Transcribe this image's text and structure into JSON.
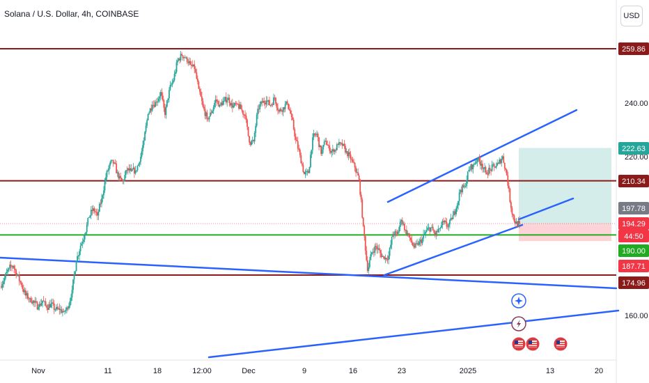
{
  "header": {
    "title": "Solana / U.S. Dollar, 4h, COINBASE",
    "currency_button": "USD"
  },
  "chart_data": {
    "type": "candlestick",
    "title": "Solana / U.S. Dollar, 4h, COINBASE",
    "y_axis_ticks": [
      "240.00",
      "220.00",
      "160.00"
    ],
    "x_axis_ticks": [
      "Nov",
      "11",
      "18",
      "12:00",
      "Dec",
      "9",
      "16",
      "23",
      "2025",
      "13",
      "20"
    ],
    "price_levels": [
      {
        "label": "259.86",
        "value": 259.86,
        "color": "#8b1a1a"
      },
      {
        "label": "222.63",
        "value": 222.63,
        "color": "#26a69a"
      },
      {
        "label": "210.34",
        "value": 210.34,
        "color": "#8b1a1a"
      },
      {
        "label": "197.78",
        "value": 197.78,
        "color": "#787b86"
      },
      {
        "label": "194.29",
        "value": 194.29,
        "color": "#f23645"
      },
      {
        "label": "44:50",
        "value": 191.9,
        "color": "#f23645"
      },
      {
        "label": "190.00",
        "value": 190.0,
        "color": "#22ab22"
      },
      {
        "label": "187.71",
        "value": 187.71,
        "color": "#f23645"
      },
      {
        "label": "174.96",
        "value": 174.96,
        "color": "#8b1a1a"
      }
    ],
    "horizontal_lines": [
      {
        "price": 259.86,
        "color": "#8b1a1a"
      },
      {
        "price": 210.34,
        "color": "#8b1a1a"
      },
      {
        "price": 190.0,
        "color": "#22ab22"
      },
      {
        "price": 174.96,
        "color": "#8b1a1a"
      }
    ],
    "position_box": {
      "entry": 194.29,
      "target": 222.63,
      "stop": 187.71
    },
    "ylim": [
      147,
      273
    ],
    "price_series": [
      [
        170.8,
        173.8
      ],
      [
        173.8,
        177.5
      ],
      [
        177.5,
        178.4
      ],
      [
        178.4,
        175.0
      ],
      [
        175.0,
        171.2
      ],
      [
        171.2,
        167.3
      ],
      [
        167.3,
        166.3
      ],
      [
        166.3,
        164.6
      ],
      [
        164.6,
        162.9
      ],
      [
        162.9,
        165.4
      ],
      [
        165.4,
        162.7
      ],
      [
        162.7,
        164.2
      ],
      [
        164.2,
        162.0
      ],
      [
        162.0,
        161.9
      ],
      [
        161.9,
        161.3
      ],
      [
        161.3,
        162.4
      ],
      [
        162.4,
        169.4
      ],
      [
        169.4,
        180.3
      ],
      [
        180.3,
        186.0
      ],
      [
        186.0,
        190.3
      ],
      [
        190.3,
        196.7
      ],
      [
        196.7,
        200.0
      ],
      [
        200.0,
        197.3
      ],
      [
        197.3,
        203.7
      ],
      [
        203.7,
        211.7
      ],
      [
        211.7,
        217.1
      ],
      [
        217.1,
        217.1
      ],
      [
        217.1,
        211.2
      ],
      [
        211.2,
        210.1
      ],
      [
        210.1,
        214.3
      ],
      [
        214.3,
        214.0
      ],
      [
        214.0,
        214.2
      ],
      [
        214.2,
        217.4
      ],
      [
        217.4,
        225.4
      ],
      [
        225.4,
        235.4
      ],
      [
        235.4,
        238.8
      ],
      [
        238.8,
        239.8
      ],
      [
        239.8,
        243.6
      ],
      [
        243.6,
        235.0
      ],
      [
        235.0,
        244.4
      ],
      [
        244.4,
        248.0
      ],
      [
        248.0,
        255.5
      ],
      [
        255.5,
        257.4
      ],
      [
        257.4,
        256.6
      ],
      [
        256.6,
        253.9
      ],
      [
        253.9,
        252.3
      ],
      [
        252.3,
        244.8
      ],
      [
        244.8,
        238.1
      ],
      [
        238.1,
        233.6
      ],
      [
        233.6,
        235.7
      ],
      [
        235.7,
        240.8
      ],
      [
        240.8,
        238.8
      ],
      [
        238.8,
        240.3
      ],
      [
        240.3,
        241.5
      ],
      [
        241.5,
        237.8
      ],
      [
        237.8,
        239.2
      ],
      [
        239.2,
        237.2
      ],
      [
        237.2,
        234.7
      ],
      [
        234.7,
        224.7
      ],
      [
        224.7,
        225.1
      ],
      [
        225.1,
        237.3
      ],
      [
        237.3,
        239.6
      ],
      [
        239.6,
        240.4
      ],
      [
        240.4,
        238.6
      ],
      [
        238.6,
        241.5
      ],
      [
        241.5,
        236.3
      ],
      [
        236.3,
        237.9
      ],
      [
        237.9,
        239.3
      ],
      [
        239.3,
        234.2
      ],
      [
        234.2,
        225.7
      ],
      [
        225.7,
        219.9
      ],
      [
        219.9,
        212.8
      ],
      [
        212.8,
        213.2
      ],
      [
        213.2,
        226.6
      ],
      [
        226.6,
        228.0
      ],
      [
        228.0,
        220.4
      ],
      [
        220.4,
        225.3
      ],
      [
        225.3,
        221.6
      ],
      [
        221.6,
        221.2
      ],
      [
        221.2,
        223.8
      ],
      [
        223.8,
        223.5
      ],
      [
        223.5,
        221.4
      ],
      [
        221.4,
        218.4
      ],
      [
        218.4,
        215.3
      ],
      [
        215.3,
        210.7
      ],
      [
        210.7,
        193.4
      ],
      [
        193.4,
        176.5
      ],
      [
        176.5,
        183.5
      ],
      [
        183.5,
        185.7
      ],
      [
        185.7,
        183.2
      ],
      [
        183.2,
        180.9
      ],
      [
        180.9,
        182.2
      ],
      [
        182.2,
        190.4
      ],
      [
        190.4,
        190.4
      ],
      [
        190.4,
        195.6
      ],
      [
        195.6,
        191.9
      ],
      [
        191.9,
        189.0
      ],
      [
        189.0,
        185.3
      ],
      [
        185.3,
        186.3
      ],
      [
        186.3,
        188.6
      ],
      [
        188.6,
        191.8
      ],
      [
        191.8,
        192.8
      ],
      [
        192.8,
        190.0
      ],
      [
        190.0,
        192.4
      ],
      [
        192.4,
        194.8
      ],
      [
        194.8,
        193.1
      ],
      [
        193.1,
        195.9
      ],
      [
        195.9,
        200.0
      ],
      [
        200.0,
        206.9
      ],
      [
        206.9,
        208.1
      ],
      [
        208.1,
        214.4
      ],
      [
        214.4,
        216.4
      ],
      [
        216.4,
        218.3
      ],
      [
        218.3,
        216.7
      ],
      [
        216.7,
        213.5
      ],
      [
        213.5,
        214.5
      ],
      [
        214.5,
        215.7
      ],
      [
        215.7,
        216.8
      ],
      [
        216.8,
        219.5
      ],
      [
        219.5,
        212.4
      ],
      [
        212.4,
        200.1
      ],
      [
        200.1,
        194.2
      ],
      [
        194.2,
        194.29
      ]
    ]
  },
  "event_icons": [
    "compass-event-icon",
    "lightning-event-icon",
    "us-flag-icon",
    "us-flag-icon",
    "us-flag-icon"
  ]
}
